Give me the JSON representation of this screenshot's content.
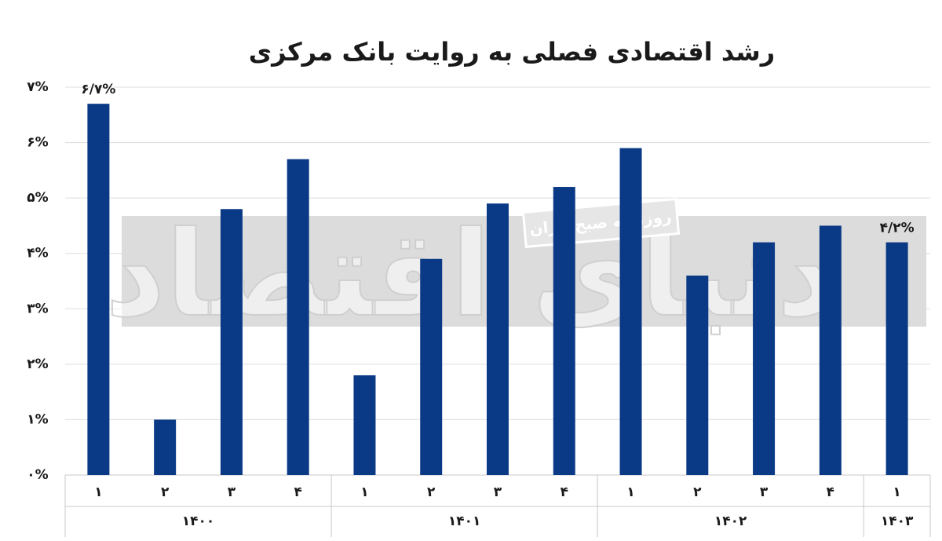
{
  "chart_data": {
    "type": "bar",
    "title": "رشد اقتصادی فصلی به روایت بانک مرکزی",
    "watermark": "دنیای اقتصاد",
    "watermark_subtitle": "روزنامه صبح ایران",
    "groups": [
      {
        "label": "۱۴۰۰",
        "categories": [
          "۱",
          "۲",
          "۳",
          "۴"
        ]
      },
      {
        "label": "۱۴۰۱",
        "categories": [
          "۱",
          "۲",
          "۳",
          "۴"
        ]
      },
      {
        "label": "۱۴۰۲",
        "categories": [
          "۱",
          "۲",
          "۳",
          "۴"
        ]
      },
      {
        "label": "۱۴۰۳",
        "categories": [
          "۱"
        ]
      }
    ],
    "values": [
      6.7,
      1.0,
      4.8,
      5.7,
      1.8,
      3.9,
      4.9,
      5.2,
      5.9,
      3.6,
      4.2,
      4.5,
      4.2
    ],
    "value_labels": [
      "۶/۷%",
      null,
      null,
      null,
      null,
      null,
      null,
      null,
      null,
      null,
      null,
      null,
      "۴/۲%"
    ],
    "color": "#0a3a86",
    "ylim": [
      0,
      7
    ],
    "yticks": [
      {
        "value": 0,
        "label": "۰%"
      },
      {
        "value": 1,
        "label": "۱%"
      },
      {
        "value": 2,
        "label": "۲%"
      },
      {
        "value": 3,
        "label": "۳%"
      },
      {
        "value": 4,
        "label": "۴%"
      },
      {
        "value": 5,
        "label": "۵%"
      },
      {
        "value": 6,
        "label": "۶%"
      },
      {
        "value": 7,
        "label": "۷%"
      }
    ],
    "grid": true
  }
}
